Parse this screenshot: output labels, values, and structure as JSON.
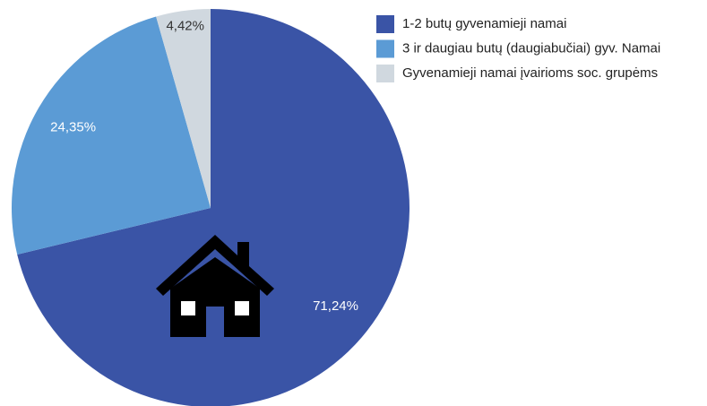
{
  "chart_data": {
    "type": "pie",
    "categories": [
      "1-2 butų gyvenamieji namai",
      "3 ir daugiau butų (daugiabučiai) gyv. Namai",
      "Gyvenamieji namai įvairioms soc. grupėms"
    ],
    "values": [
      71.24,
      24.35,
      4.42
    ],
    "value_labels": [
      "71,24%",
      "24,35%",
      "4,42%"
    ],
    "colors": [
      "#3a54a6",
      "#5b9bd5",
      "#d0d8df"
    ],
    "legend": "top-right"
  }
}
